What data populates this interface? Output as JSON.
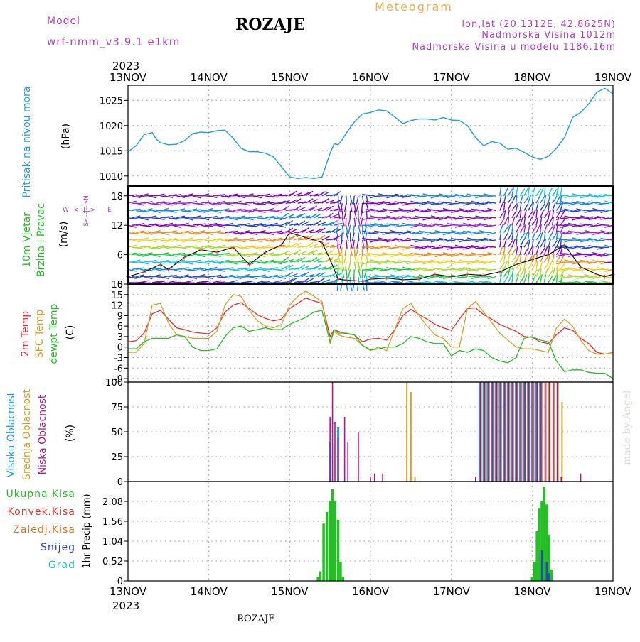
{
  "header": {
    "model_label": "Model",
    "model_name": "wrf-nmm_v3.9.1 e1km",
    "location": "ROZAJE",
    "meteogram": "Meteogram",
    "coords": "lon,lat (20.1312E, 42.8625N)",
    "elevation": "Nadmorska Visina 1012m",
    "model_elevation": "Nadmorska Visina u modelu 1186.16m",
    "year_top": "2023",
    "year_bottom": "2023",
    "footer_location": "ROZAJE",
    "credit": "made by Angel"
  },
  "colors": {
    "pressure": "#1ea0e6",
    "temp2m": "#e83232",
    "sfc": "#d8a028",
    "dewpt": "#22c022",
    "high": "#1ea0e6",
    "mid": "#d8a028",
    "low": "#b4148c",
    "total": "#22c022",
    "conv": "#e83232",
    "frz": "#f07020",
    "snow": "#3040d0",
    "grad": "#20c0c0",
    "title_purple": "#b040c8",
    "title_orange": "#e8b44c"
  },
  "chart_data": [
    {
      "type": "line",
      "panel": "pressure",
      "x_ticks": [
        "13NOV",
        "14NOV",
        "15NOV",
        "16NOV",
        "17NOV",
        "18NOV",
        "19NOV"
      ],
      "xlim_days": [
        0,
        6
      ],
      "ylim": [
        1008,
        1028
      ],
      "y_ticks": [
        1010,
        1015,
        1020,
        1025
      ],
      "ylabel": "(hPa)",
      "side_label": "Pritisak na nivou mora",
      "grid": true,
      "series": [
        {
          "key": "pressure",
          "x": [
            0,
            0.1,
            0.2,
            0.3,
            0.35,
            0.4,
            0.5,
            0.6,
            0.7,
            0.8,
            0.9,
            1.0,
            1.1,
            1.2,
            1.3,
            1.4,
            1.5,
            1.6,
            1.7,
            1.8,
            1.9,
            2.0,
            2.1,
            2.2,
            2.3,
            2.4,
            2.5,
            2.55,
            2.6,
            2.65,
            2.7,
            2.8,
            2.9,
            3.0,
            3.1,
            3.2,
            3.3,
            3.4,
            3.5,
            3.6,
            3.7,
            3.8,
            3.9,
            4.0,
            4.1,
            4.2,
            4.3,
            4.4,
            4.5,
            4.6,
            4.7,
            4.8,
            4.9,
            5.0,
            5.1,
            5.2,
            5.3,
            5.4,
            5.5,
            5.6,
            5.7,
            5.8,
            5.9,
            6.0
          ],
          "values": [
            1014.8,
            1016.0,
            1018.2,
            1018.6,
            1017.3,
            1016.6,
            1016.2,
            1016.3,
            1017.0,
            1018.4,
            1018.7,
            1018.6,
            1019.0,
            1019.1,
            1017.5,
            1015.5,
            1014.8,
            1014.8,
            1014.5,
            1013.8,
            1011.8,
            1009.8,
            1009.5,
            1009.7,
            1009.5,
            1009.8,
            1014.5,
            1016.4,
            1016.2,
            1017.2,
            1018.5,
            1020.7,
            1022.3,
            1022.6,
            1023.1,
            1022.9,
            1021.7,
            1020.4,
            1021.0,
            1021.3,
            1021.3,
            1021.1,
            1021.6,
            1021.1,
            1021.0,
            1020.0,
            1017.6,
            1016.0,
            1016.8,
            1016.5,
            1015.3,
            1015.5,
            1014.7,
            1013.8,
            1013.3,
            1013.9,
            1015.5,
            1017.6,
            1021.6,
            1022.6,
            1024.3,
            1026.6,
            1027.4,
            1026.3
          ]
        }
      ]
    },
    {
      "type": "scatter",
      "panel": "wind",
      "xlim_days": [
        0,
        6
      ],
      "ylim": [
        0,
        20
      ],
      "y_ticks": [
        0,
        6,
        12,
        18
      ],
      "ylabel": "(m/s)",
      "side_label": [
        "10m Vjetar",
        "Brzina i Pravac"
      ],
      "compass": {
        "n": "N",
        "w": "W",
        "e": "E",
        "s": "S",
        "arrows": "<--|-->"
      },
      "grid": true,
      "barb_levels_m_s": [
        0.3,
        1.5,
        3,
        4.5,
        6,
        7.5,
        9,
        10.5,
        12,
        13.5,
        15,
        16.5,
        18
      ],
      "speed_series": {
        "x": [
          0,
          0.2,
          0.4,
          0.5,
          0.7,
          0.9,
          1.1,
          1.3,
          1.5,
          1.7,
          1.9,
          2.0,
          2.1,
          2.2,
          2.3,
          2.4,
          2.5,
          2.6,
          2.7,
          2.8,
          2.9,
          3.0,
          3.2,
          3.4,
          3.6,
          3.8,
          4.0,
          4.2,
          4.4,
          4.6,
          4.8,
          5.0,
          5.2,
          5.4,
          5.6,
          5.8,
          5.9,
          6.0
        ],
        "values": [
          1.5,
          2.5,
          4,
          3,
          5.5,
          7,
          6.5,
          7.5,
          4,
          6.5,
          8,
          10.5,
          10,
          9.5,
          9,
          8.5,
          5,
          1,
          0.8,
          0.7,
          0.6,
          1,
          1.2,
          0.9,
          1,
          2,
          1.5,
          2,
          1.8,
          2.5,
          4,
          5,
          6,
          8,
          3.5,
          2,
          1.5,
          2
        ]
      }
    },
    {
      "type": "line",
      "panel": "temperature",
      "xlim_days": [
        0,
        6
      ],
      "ylim": [
        -10,
        18
      ],
      "y_ticks": [
        -9,
        -6,
        -3,
        0,
        3,
        6,
        9,
        12,
        15,
        18
      ],
      "ylabel": "(C)",
      "side_label": [
        "2m Temp",
        "SFC Temp",
        "dewpt Temp"
      ],
      "grid": true,
      "series": [
        {
          "key": "temp2m",
          "x": [
            0,
            0.1,
            0.2,
            0.3,
            0.4,
            0.5,
            0.6,
            0.7,
            0.8,
            0.9,
            1.0,
            1.1,
            1.2,
            1.3,
            1.4,
            1.5,
            1.6,
            1.7,
            1.8,
            1.9,
            2.0,
            2.1,
            2.2,
            2.3,
            2.4,
            2.5,
            2.55,
            2.6,
            2.7,
            2.8,
            2.9,
            3.0,
            3.1,
            3.2,
            3.3,
            3.4,
            3.5,
            3.6,
            3.7,
            3.8,
            3.9,
            4.0,
            4.1,
            4.2,
            4.3,
            4.4,
            4.5,
            4.6,
            4.7,
            4.8,
            4.9,
            5.0,
            5.1,
            5.2,
            5.3,
            5.4,
            5.5,
            5.6,
            5.7,
            5.8,
            5.9,
            6.0
          ],
          "values": [
            1.5,
            1.8,
            4,
            9.5,
            10.5,
            8,
            5.5,
            5,
            4.3,
            4,
            3.8,
            5.5,
            10,
            12,
            12.7,
            11,
            9.3,
            8.2,
            7.5,
            8,
            11,
            12.5,
            14,
            13.2,
            12.5,
            3,
            5,
            4.5,
            3.8,
            3.5,
            1.5,
            2.3,
            2.5,
            2,
            5,
            9,
            10.8,
            9.3,
            8,
            6.5,
            5.5,
            4.8,
            8,
            11,
            11.2,
            9.3,
            8,
            6.5,
            5.5,
            4.5,
            3,
            2.8,
            1.5,
            1,
            3.5,
            5.5,
            4.8,
            2.5,
            1,
            -1.5,
            -2,
            -1.5
          ]
        },
        {
          "key": "sfc",
          "x": [
            0,
            0.1,
            0.2,
            0.3,
            0.4,
            0.5,
            0.6,
            0.7,
            0.8,
            0.9,
            1.0,
            1.1,
            1.2,
            1.3,
            1.4,
            1.5,
            1.6,
            1.7,
            1.8,
            1.9,
            2.0,
            2.1,
            2.2,
            2.3,
            2.4,
            2.5,
            2.55,
            2.6,
            2.7,
            2.8,
            2.9,
            3.0,
            3.1,
            3.2,
            3.3,
            3.4,
            3.5,
            3.6,
            3.7,
            3.8,
            3.9,
            4.0,
            4.1,
            4.2,
            4.3,
            4.4,
            4.5,
            4.6,
            4.7,
            4.8,
            4.9,
            5.0,
            5.1,
            5.2,
            5.3,
            5.4,
            5.5,
            5.6,
            5.7,
            5.8,
            5.9,
            6.0
          ],
          "values": [
            -1.5,
            -1.5,
            1,
            12,
            12.5,
            7,
            3.5,
            3,
            2.5,
            2.5,
            2.5,
            4.5,
            12,
            15,
            14.5,
            10.5,
            7.5,
            6,
            5.5,
            6.5,
            12,
            14.5,
            16,
            14.5,
            13,
            1,
            4.5,
            3.5,
            2.8,
            2.5,
            0.5,
            -1,
            0,
            -1,
            5,
            11,
            12.5,
            9,
            6,
            3.5,
            2.5,
            0,
            0,
            11,
            13,
            10,
            7,
            4,
            2,
            0,
            -0.5,
            -0.5,
            -1,
            -1.5,
            5.5,
            8,
            6,
            2,
            -1,
            -2,
            -2,
            -1.5
          ]
        },
        {
          "key": "dewpt",
          "x": [
            0,
            0.1,
            0.2,
            0.3,
            0.4,
            0.5,
            0.6,
            0.7,
            0.8,
            0.9,
            1.0,
            1.1,
            1.2,
            1.3,
            1.4,
            1.5,
            1.6,
            1.7,
            1.8,
            1.9,
            2.0,
            2.1,
            2.2,
            2.3,
            2.4,
            2.5,
            2.55,
            2.6,
            2.7,
            2.8,
            2.9,
            3.0,
            3.1,
            3.2,
            3.3,
            3.4,
            3.5,
            3.6,
            3.7,
            3.8,
            3.9,
            4.0,
            4.1,
            4.2,
            4.3,
            4.4,
            4.5,
            4.6,
            4.7,
            4.8,
            4.9,
            5.0,
            5.1,
            5.2,
            5.3,
            5.4,
            5.5,
            5.6,
            5.7,
            5.8,
            5.9,
            6.0
          ],
          "values": [
            -0.5,
            -0.5,
            1.5,
            2.5,
            2.5,
            2.5,
            3.5,
            3,
            0,
            -1,
            -1,
            -0.5,
            3,
            5.5,
            6,
            4.5,
            5,
            5.5,
            5,
            5,
            6.5,
            7.5,
            8.5,
            10,
            10.5,
            1.5,
            5,
            4,
            4,
            3.5,
            0.5,
            -0.8,
            -0.5,
            0,
            0,
            1,
            3,
            2.5,
            1.5,
            1,
            1,
            -2.5,
            -1,
            -1.5,
            -0.5,
            -1,
            -3,
            -4,
            -4.5,
            -3,
            2.5,
            3,
            2,
            1.5,
            -4,
            -7,
            -6.5,
            -6.5,
            -7.2,
            -7.5,
            -7.5,
            -9
          ]
        }
      ]
    },
    {
      "type": "bar",
      "panel": "clouds",
      "xlim_days": [
        0,
        6
      ],
      "ylim": [
        0,
        100
      ],
      "y_ticks": [
        0,
        25,
        50,
        75,
        100
      ],
      "ylabel": "(%)",
      "side_label": [
        "Visoka Oblacnost",
        "Srednja Oblacnost",
        "Niska Oblacnost"
      ],
      "grid": true,
      "series": [
        {
          "key": "high",
          "x": [
            2.5,
            2.6,
            4.35,
            4.4,
            4.45,
            4.5,
            4.55,
            4.6,
            4.65,
            4.7,
            4.75,
            4.8,
            4.85,
            4.9,
            4.95,
            5.0,
            5.05,
            5.1
          ],
          "values": [
            40,
            55,
            100,
            100,
            100,
            100,
            100,
            100,
            100,
            100,
            100,
            100,
            100,
            100,
            100,
            100,
            100,
            100
          ]
        },
        {
          "key": "mid",
          "x": [
            4.37,
            4.42,
            4.47,
            4.52,
            4.57,
            4.62,
            4.67,
            4.72,
            4.77,
            4.82,
            4.87,
            4.92,
            4.97,
            5.02,
            5.07,
            5.12,
            5.17,
            5.22,
            5.27,
            5.32,
            5.37,
            3.45,
            3.5,
            3.55
          ],
          "values": [
            100,
            100,
            100,
            100,
            100,
            100,
            100,
            100,
            100,
            100,
            100,
            100,
            100,
            100,
            100,
            100,
            100,
            100,
            100,
            100,
            80,
            100,
            90,
            5
          ]
        },
        {
          "key": "low",
          "x": [
            2.5,
            2.53,
            2.56,
            2.6,
            2.68,
            2.72,
            2.85,
            3.0,
            3.05,
            3.15,
            4.3,
            4.36,
            4.41,
            4.46,
            4.51,
            4.56,
            4.61,
            4.66,
            4.71,
            4.76,
            4.81,
            4.86,
            4.91,
            4.96,
            5.01,
            5.06,
            5.11,
            5.16,
            5.21,
            5.26,
            5.31,
            5.36,
            5.6
          ],
          "values": [
            65,
            100,
            60,
            45,
            65,
            40,
            50,
            5,
            8,
            8,
            5,
            100,
            100,
            100,
            100,
            100,
            100,
            100,
            100,
            100,
            100,
            100,
            100,
            100,
            100,
            100,
            100,
            100,
            100,
            100,
            100,
            5,
            8
          ]
        }
      ]
    },
    {
      "type": "bar",
      "panel": "precip",
      "x_ticks": [
        "13NOV",
        "14NOV",
        "15NOV",
        "16NOV",
        "17NOV",
        "18NOV",
        "19NOV"
      ],
      "xlim_days": [
        0,
        6
      ],
      "ylim": [
        0,
        2.6
      ],
      "y_ticks": [
        0,
        0.52,
        1.04,
        1.56,
        2.08
      ],
      "ylabel": "1hr Precip (mm)",
      "side_label": [
        "Ukupna Kisa",
        "Konvek.Kisa",
        "Zaledj.Kisa",
        "Snijeg",
        "Grad"
      ],
      "grid": true,
      "series": [
        {
          "key": "total",
          "x": [
            2.35,
            2.38,
            2.42,
            2.46,
            2.5,
            2.53,
            2.56,
            2.6,
            2.63,
            2.66,
            5.0,
            5.03,
            5.06,
            5.09,
            5.12,
            5.15,
            5.18,
            5.21,
            5.24
          ],
          "values": [
            0.1,
            0.25,
            1.5,
            1.8,
            2.1,
            2.4,
            2.1,
            1.6,
            0.5,
            0.1,
            0.1,
            0.5,
            1.3,
            1.9,
            2.1,
            2.45,
            2.0,
            1.2,
            0.3
          ]
        },
        {
          "key": "snow",
          "x": [
            5.12,
            5.18,
            5.21
          ],
          "values": [
            0.8,
            0.5,
            0.2
          ]
        }
      ]
    }
  ]
}
